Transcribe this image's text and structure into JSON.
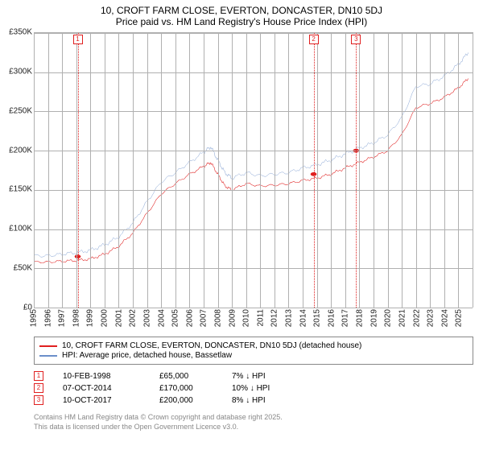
{
  "title": {
    "line1": "10, CROFT FARM CLOSE, EVERTON, DONCASTER, DN10 5DJ",
    "line2": "Price paid vs. HM Land Registry's House Price Index (HPI)"
  },
  "chart": {
    "type": "line",
    "ylim": [
      0,
      350
    ],
    "ytick_step": 50,
    "y_format_prefix": "£",
    "y_format_suffix": "K",
    "xlim": [
      1995,
      2026
    ],
    "xticks": [
      1995,
      1996,
      1997,
      1998,
      1999,
      2000,
      2001,
      2002,
      2003,
      2004,
      2005,
      2006,
      2007,
      2008,
      2009,
      2010,
      2011,
      2012,
      2013,
      2014,
      2015,
      2016,
      2017,
      2018,
      2019,
      2020,
      2021,
      2022,
      2023,
      2024,
      2025
    ],
    "grid_color": "#b0b0b0",
    "background_color": "#ffffff",
    "series": [
      {
        "name": "price_paid",
        "color": "#e02020",
        "width": 2,
        "label": "10, CROFT FARM CLOSE, EVERTON, DONCASTER, DN10 5DJ (detached house)",
        "x": [
          1995,
          1996,
          1997,
          1998,
          1999,
          2000,
          2001,
          2002,
          2003,
          2004,
          2005,
          2006,
          2007,
          2007.5,
          2008,
          2008.5,
          2009,
          2010,
          2011,
          2012,
          2013,
          2014,
          2015,
          2016,
          2017,
          2018,
          2019,
          2020,
          2021,
          2022,
          2023,
          2024,
          2025,
          2025.7
        ],
        "y": [
          58,
          58,
          59,
          60,
          62,
          68,
          78,
          95,
          120,
          145,
          158,
          170,
          180,
          185,
          170,
          155,
          150,
          158,
          155,
          156,
          158,
          162,
          165,
          170,
          178,
          185,
          192,
          200,
          220,
          255,
          260,
          268,
          280,
          292
        ]
      },
      {
        "name": "hpi",
        "color": "#6b8fc9",
        "width": 1.5,
        "label": "HPI: Average price, detached house, Bassetlaw",
        "x": [
          1995,
          1996,
          1997,
          1998,
          1999,
          2000,
          2001,
          2002,
          2003,
          2004,
          2005,
          2006,
          2007,
          2007.5,
          2008,
          2008.5,
          2009,
          2010,
          2011,
          2012,
          2013,
          2014,
          2015,
          2016,
          2017,
          2018,
          2019,
          2020,
          2021,
          2022,
          2023,
          2024,
          2025,
          2025.7
        ],
        "y": [
          66,
          66,
          68,
          70,
          73,
          80,
          90,
          108,
          135,
          160,
          172,
          185,
          198,
          205,
          188,
          172,
          165,
          172,
          168,
          170,
          172,
          178,
          182,
          188,
          196,
          203,
          210,
          220,
          242,
          282,
          285,
          295,
          310,
          325
        ]
      }
    ],
    "markers": [
      {
        "n": "1",
        "x": 1998.1,
        "y": 65
      },
      {
        "n": "2",
        "x": 2014.77,
        "y": 170
      },
      {
        "n": "3",
        "x": 2017.77,
        "y": 200
      }
    ]
  },
  "legend": {
    "items": [
      {
        "color": "#e02020",
        "label": "10, CROFT FARM CLOSE, EVERTON, DONCASTER, DN10 5DJ (detached house)"
      },
      {
        "color": "#6b8fc9",
        "label": "HPI: Average price, detached house, Bassetlaw"
      }
    ]
  },
  "sales": [
    {
      "n": "1",
      "date": "10-FEB-1998",
      "price": "£65,000",
      "diff": "7% ↓ HPI"
    },
    {
      "n": "2",
      "date": "07-OCT-2014",
      "price": "£170,000",
      "diff": "10% ↓ HPI"
    },
    {
      "n": "3",
      "date": "10-OCT-2017",
      "price": "£200,000",
      "diff": "8% ↓ HPI"
    }
  ],
  "footer": {
    "line1": "Contains HM Land Registry data © Crown copyright and database right 2025.",
    "line2": "This data is licensed under the Open Government Licence v3.0."
  }
}
